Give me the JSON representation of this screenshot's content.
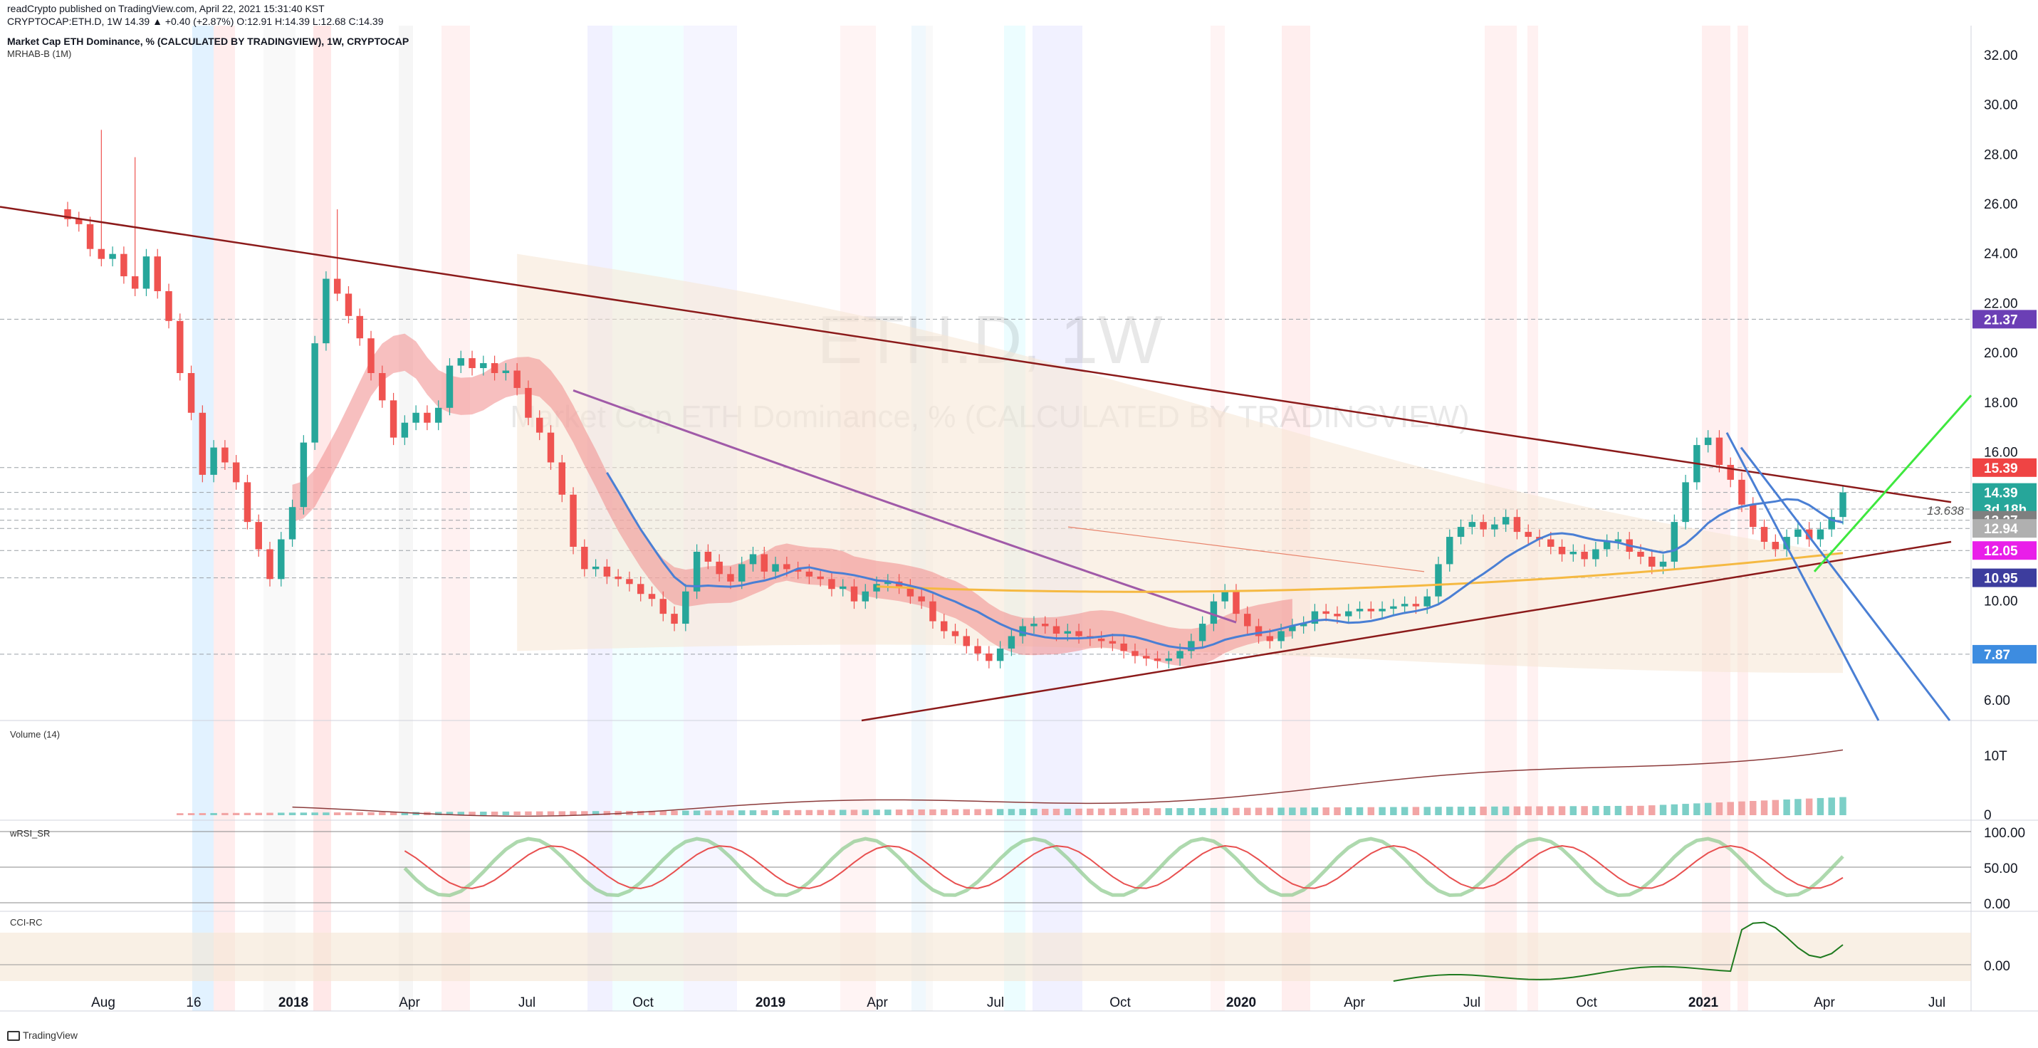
{
  "header": {
    "publisher_line": "readCrypto published on TradingView.com, April 22, 2021 15:31:40 KST",
    "ohlc_line": "CRYPTOCAP:ETH.D, 1W  14.39 ▲ +0.40 (+2.87%) O:12.91 H:14.39 L:12.68 C:14.39",
    "symbol_title": "Market Cap ETH Dominance, % (CALCULATED BY TRADINGVIEW), 1W, CRYPTOCAP",
    "indicator": "MRHAB-B (1M)"
  },
  "watermark": {
    "symbol": "ETH.D, 1W",
    "description": "Market Cap ETH Dominance, % (CALCULATED BY TRADINGVIEW)"
  },
  "panes": {
    "volume_label": "Volume (14)",
    "wrsi_label": "wRSI_SR",
    "cci_label": "CCI-RC"
  },
  "footer": {
    "brand": "TradingView"
  },
  "colors": {
    "up": "#26a69a",
    "down": "#ef5350",
    "trendline": "#8b1a1a",
    "blue_line": "#4a7fd4",
    "green_line": "#3ee83e",
    "purple_ma": "#a05aa8",
    "orange_ma": "#f5b942"
  },
  "chart_data": {
    "type": "candlestick",
    "timeframe": "1W",
    "x_tick_labels": [
      "Aug",
      "16",
      "2018",
      "Apr",
      "Jul",
      "Oct",
      "2019",
      "Apr",
      "Jul",
      "Oct",
      "2020",
      "Apr",
      "Jul",
      "Oct",
      "2021",
      "Apr",
      "Jul"
    ],
    "y_ticks": [
      "6.00",
      "8.00",
      "10.00",
      "12.00",
      "14.00",
      "16.00",
      "18.00",
      "20.00",
      "22.00",
      "24.00",
      "26.00",
      "28.00",
      "30.00",
      "32.00"
    ],
    "ylim": [
      5.2,
      33.2
    ],
    "price_labels": [
      {
        "text": "21.37",
        "value": 21.37,
        "color": "#6b3fb5"
      },
      {
        "text": "15.39",
        "value": 15.39,
        "color": "#ef4444"
      },
      {
        "text": "14.39",
        "value": 14.39,
        "color": "#26a69a"
      },
      {
        "text": "3d 18h",
        "value": 13.72,
        "color": "#26a69a"
      },
      {
        "text": "13.27",
        "value": 13.27,
        "color": "#7f7f7f"
      },
      {
        "text": "12.94",
        "value": 12.94,
        "color": "#b0b0b0"
      },
      {
        "text": "12.05",
        "value": 12.05,
        "color": "#e91ee9"
      },
      {
        "text": "10.95",
        "value": 10.95,
        "color": "#3d3d9e"
      },
      {
        "text": "7.87",
        "value": 7.87,
        "color": "#3d8ce0"
      }
    ],
    "annotation": {
      "text": "13.638",
      "value": 13.638
    },
    "weekly_close": [
      25.4,
      25.2,
      24.2,
      23.8,
      24.0,
      23.1,
      22.6,
      23.9,
      22.5,
      21.3,
      19.2,
      17.6,
      15.1,
      16.2,
      15.6,
      14.8,
      13.2,
      12.1,
      10.9,
      12.5,
      13.8,
      16.4,
      20.4,
      23.0,
      22.4,
      21.5,
      20.6,
      19.2,
      18.1,
      16.6,
      17.2,
      17.6,
      17.2,
      17.8,
      19.5,
      19.8,
      19.4,
      19.6,
      19.2,
      19.3,
      18.6,
      17.4,
      16.8,
      15.6,
      14.3,
      12.2,
      11.3,
      11.4,
      11.0,
      10.9,
      10.7,
      10.3,
      10.1,
      9.5,
      9.1,
      10.4,
      12.0,
      11.6,
      11.1,
      10.8,
      11.5,
      11.9,
      11.2,
      11.5,
      11.3,
      11.2,
      11.0,
      10.9,
      10.5,
      10.6,
      10.0,
      10.4,
      10.7,
      10.8,
      10.6,
      10.2,
      10.0,
      9.2,
      8.8,
      8.6,
      8.2,
      7.9,
      7.6,
      8.1,
      8.6,
      9.0,
      9.1,
      9.0,
      8.7,
      8.8,
      8.6,
      8.5,
      8.4,
      8.3,
      8.0,
      7.8,
      7.7,
      7.6,
      7.7,
      8.0,
      8.4,
      9.1,
      10.0,
      10.4,
      9.5,
      9.0,
      8.6,
      8.4,
      8.8,
      9.0,
      9.1,
      9.6,
      9.5,
      9.4,
      9.6,
      9.7,
      9.6,
      9.7,
      9.8,
      9.9,
      9.8,
      10.2,
      11.5,
      12.6,
      13.0,
      13.2,
      12.9,
      13.1,
      13.4,
      12.8,
      12.6,
      12.5,
      12.2,
      11.9,
      12.0,
      11.7,
      12.1,
      12.4,
      12.5,
      12.0,
      11.8,
      11.4,
      11.6,
      13.2,
      14.8,
      16.3,
      16.6,
      15.5,
      14.9,
      13.9,
      13.0,
      12.4,
      12.1,
      12.6,
      12.9,
      12.5,
      12.9,
      13.4,
      14.39
    ]
  }
}
